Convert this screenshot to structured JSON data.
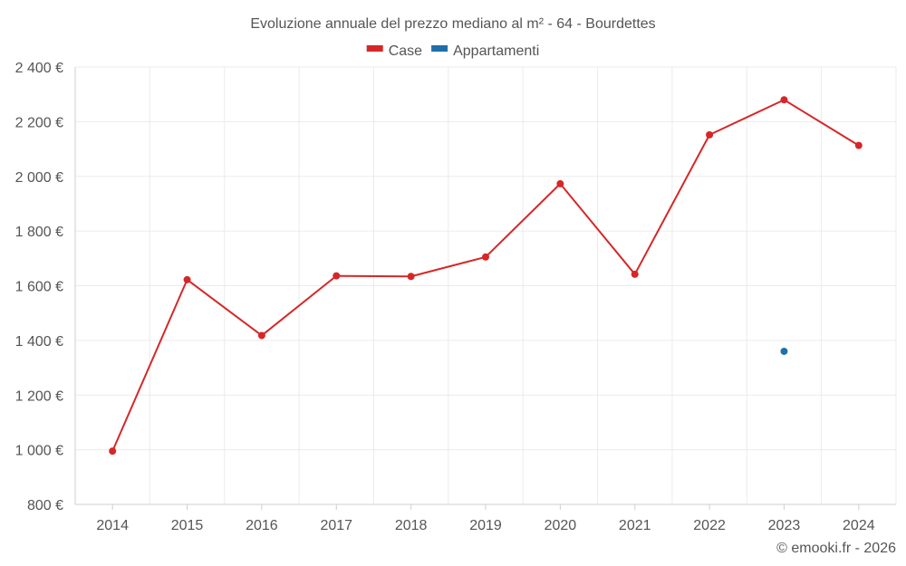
{
  "chart_data": {
    "type": "line",
    "title": "Evoluzione annuale del prezzo mediano al m² - 64 - Bourdettes",
    "x": [
      "2014",
      "2015",
      "2016",
      "2017",
      "2018",
      "2019",
      "2020",
      "2021",
      "2022",
      "2023",
      "2024"
    ],
    "ylim": [
      800,
      2400
    ],
    "yticks": [
      800,
      1000,
      1200,
      1400,
      1600,
      1800,
      2000,
      2200,
      2400
    ],
    "ytick_labels": [
      "800 €",
      "1 000 €",
      "1 200 €",
      "1 400 €",
      "1 600 €",
      "1 800 €",
      "2 000 €",
      "2 200 €",
      "2 400 €"
    ],
    "grid": true,
    "legend_position": "top-center",
    "series": [
      {
        "name": "Case",
        "color": "#d62728",
        "values": [
          995,
          1622,
          1418,
          1636,
          1634,
          1705,
          1973,
          1642,
          2152,
          2280,
          2113
        ]
      },
      {
        "name": "Appartamenti",
        "color": "#1f6fa8",
        "values": [
          null,
          null,
          null,
          null,
          null,
          null,
          null,
          null,
          null,
          1360,
          null
        ]
      }
    ]
  },
  "credit": "© emooki.fr - 2026"
}
